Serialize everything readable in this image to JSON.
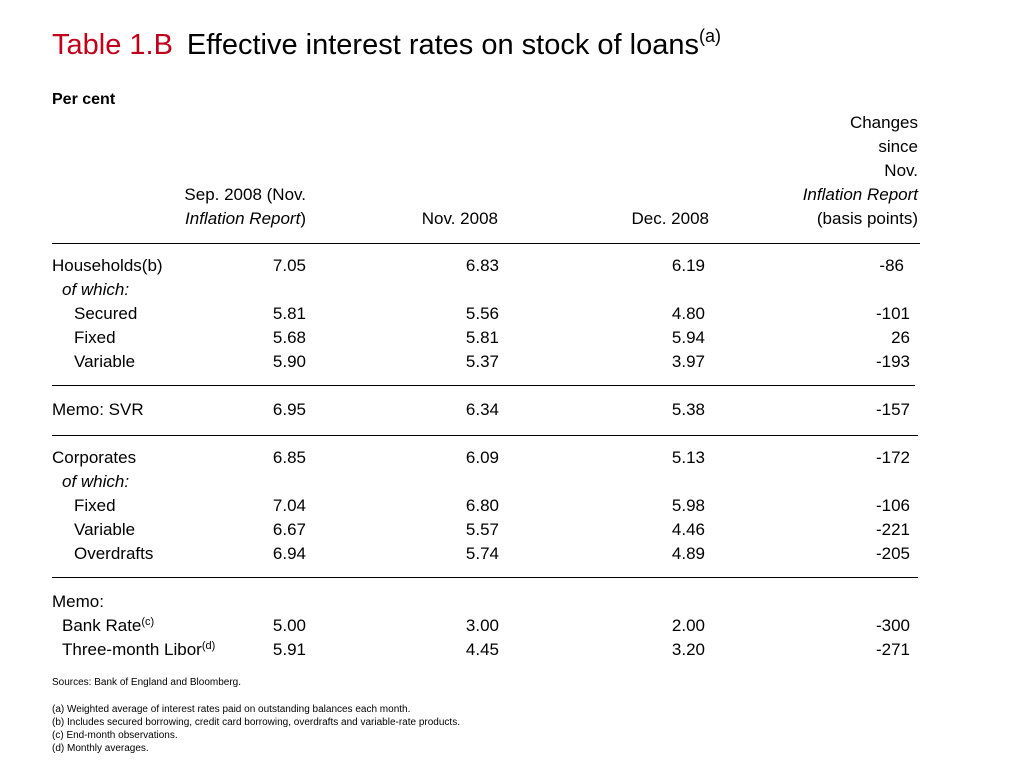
{
  "title": {
    "tag": "Table 1.B",
    "text": "Effective interest rates on stock of loans",
    "sup": "(a)"
  },
  "unit": "Per cent",
  "columns": {
    "c1": {
      "line1": "Sep. 2008 (Nov.",
      "line2_italic": "Inflation Report",
      "line2_tail": ")"
    },
    "c2": "Nov. 2008",
    "c3": "Dec. 2008",
    "c4": {
      "line1": "Changes",
      "line2": "since",
      "line3": "Nov.",
      "line4_italic": "Inflation Report",
      "line5": "(basis points)"
    }
  },
  "rows": [
    {
      "label": "Households(b)",
      "style": "normal",
      "values": [
        "7.05",
        "6.83",
        "6.19",
        "-86"
      ]
    },
    {
      "label": "of which:",
      "style": "italic"
    },
    {
      "label": "Secured",
      "style": "indent",
      "values": [
        "5.81",
        "5.56",
        "4.80",
        "-101"
      ]
    },
    {
      "label": "Fixed",
      "style": "indent",
      "values": [
        "5.68",
        "5.81",
        "5.94",
        "26"
      ]
    },
    {
      "label": "Variable",
      "style": "indent",
      "values": [
        "5.90",
        "5.37",
        "3.97",
        "-193"
      ]
    },
    {
      "label": "Memo:  SVR",
      "style": "normal",
      "values": [
        "6.95",
        "6.34",
        "5.38",
        "-157"
      ]
    },
    {
      "label": "Corporates",
      "style": "normal",
      "values": [
        "6.85",
        "6.09",
        "5.13",
        "-172"
      ]
    },
    {
      "label": "of which:",
      "style": "italic"
    },
    {
      "label": "Fixed",
      "style": "indent",
      "values": [
        "7.04",
        "6.80",
        "5.98",
        "-106"
      ]
    },
    {
      "label": "Variable",
      "style": "indent",
      "values": [
        "6.67",
        "5.57",
        "4.46",
        "-221"
      ]
    },
    {
      "label": "Overdrafts",
      "style": "indent",
      "values": [
        "6.94",
        "5.74",
        "4.89",
        "-205"
      ]
    },
    {
      "label": "Memo:",
      "style": "normal"
    },
    {
      "label": "Bank Rate",
      "sup": "(c)",
      "style": "sub",
      "values": [
        "5.00",
        "3.00",
        "2.00",
        "-300"
      ]
    },
    {
      "label": "Three-month Libor",
      "sup": "(d)",
      "style": "sub",
      "values": [
        "5.91",
        "4.45",
        "3.20",
        "-271"
      ]
    }
  ],
  "sources": "Sources:  Bank of England and Bloomberg.",
  "footnotes": [
    "(a)  Weighted average of interest rates paid on outstanding balances each month.",
    "(b)  Includes secured borrowing, credit card borrowing, overdrafts and variable-rate products.",
    "(c)  End-month observations.",
    "(d)  Monthly averages."
  ]
}
